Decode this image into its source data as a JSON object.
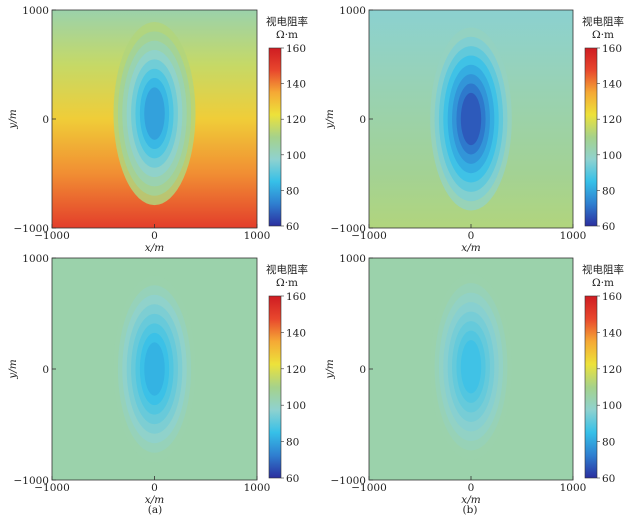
{
  "chart_data": [
    {
      "type": "heatmap",
      "panel_id": "a-top",
      "xlabel": "x/m",
      "ylabel": "y/m",
      "xlim": [
        -1000,
        1000
      ],
      "ylim": [
        -1000,
        1000
      ],
      "x_ticks": [
        "−1000",
        "0",
        "1000"
      ],
      "y_ticks": [
        "1000",
        "0",
        "−1000"
      ],
      "colorbar_title": "视电阻率",
      "colorbar_unit": "Ω·m",
      "colorbar_range": [
        60,
        160
      ],
      "colorbar_ticks": [
        "160",
        "140",
        "120",
        "100",
        "80",
        "60"
      ],
      "background_value": 112,
      "background_gradient": [
        104,
        150
      ],
      "anomaly_center": [
        0,
        50
      ],
      "anomaly_min_value": 78,
      "grid": false
    },
    {
      "type": "heatmap",
      "panel_id": "b-top",
      "xlabel": "x/m",
      "ylabel": "y/m",
      "xlim": [
        -1000,
        1000
      ],
      "ylim": [
        -1000,
        1000
      ],
      "x_ticks": [
        "−1000",
        "0",
        "1000"
      ],
      "y_ticks": [
        "1000",
        "0",
        "−1000"
      ],
      "colorbar_title": "视电阻率",
      "colorbar_unit": "Ω·m",
      "colorbar_range": [
        60,
        160
      ],
      "colorbar_ticks": [
        "160",
        "140",
        "120",
        "100",
        "80",
        "60"
      ],
      "background_value": 100,
      "background_gradient": [
        97,
        112
      ],
      "anomaly_center": [
        0,
        0
      ],
      "anomaly_min_value": 66,
      "grid": false
    },
    {
      "type": "heatmap",
      "panel_id": "a-bottom",
      "xlabel": "x/m",
      "ylabel": "y/m",
      "xlim": [
        -1000,
        1000
      ],
      "ylim": [
        -1000,
        1000
      ],
      "x_ticks": [
        "−1000",
        "0",
        "1000"
      ],
      "y_ticks": [
        "1000",
        "0",
        "−1000"
      ],
      "colorbar_title": "视电阻率",
      "colorbar_unit": "Ω·m",
      "colorbar_range": [
        60,
        160
      ],
      "colorbar_ticks": [
        "160",
        "140",
        "120",
        "100",
        "80",
        "60"
      ],
      "background_value": 104,
      "background_gradient": [
        104,
        104
      ],
      "anomaly_center": [
        0,
        0
      ],
      "anomaly_min_value": 82,
      "grid": false
    },
    {
      "type": "heatmap",
      "panel_id": "b-bottom",
      "xlabel": "x/m",
      "ylabel": "y/m",
      "xlim": [
        -1000,
        1000
      ],
      "ylim": [
        -1000,
        1000
      ],
      "x_ticks": [
        "−1000",
        "0",
        "1000"
      ],
      "y_ticks": [
        "1000",
        "0",
        "−1000"
      ],
      "colorbar_title": "视电阻率",
      "colorbar_unit": "Ω·m",
      "colorbar_range": [
        60,
        160
      ],
      "colorbar_ticks": [
        "160",
        "140",
        "120",
        "100",
        "80",
        "60"
      ],
      "background_value": 104,
      "background_gradient": [
        104,
        104
      ],
      "anomaly_center": [
        0,
        20
      ],
      "anomaly_min_value": 86,
      "grid": false
    }
  ],
  "captions": {
    "left": "(a)",
    "right": "(b)"
  },
  "colormap": [
    "#2b2f9f",
    "#2f7fd0",
    "#36c0e8",
    "#8fd2cf",
    "#a6d28a",
    "#ede23a",
    "#f5a935",
    "#e8472d",
    "#cf1c22"
  ]
}
